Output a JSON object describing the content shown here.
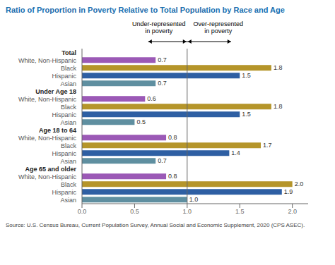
{
  "chart_data": {
    "type": "bar",
    "orientation": "horizontal",
    "title": "Ratio of Proportion in Poverty Relative to Total Population by Race and Age",
    "source": "Source: U.S. Census Bureau, Current Population Survey, Annual Social and Economic Supplement, 2020 (CPS ASEC).",
    "groups": [
      {
        "label": "Total",
        "categories": [
          "White, Non-Hispanic",
          "Black",
          "Hispanic",
          "Asian"
        ],
        "values": [
          0.7,
          1.8,
          1.5,
          0.7
        ],
        "value_labels": [
          "0.7",
          "1.8",
          "1.5",
          "0.7"
        ],
        "colors": [
          "#9b59b6",
          "#b5952a",
          "#2e5fa3",
          "#5f8fa0"
        ]
      },
      {
        "label": "Under Age 18",
        "categories": [
          "White, Non-Hispanic",
          "Black",
          "Hispanic",
          "Asian"
        ],
        "values": [
          0.6,
          1.8,
          1.5,
          0.5
        ],
        "value_labels": [
          "0.6",
          "1.8",
          "1.5",
          "0.5"
        ],
        "colors": [
          "#9b59b6",
          "#b5952a",
          "#2e5fa3",
          "#5f8fa0"
        ]
      },
      {
        "label": "Age 18 to 64",
        "categories": [
          "White, Non-Hispanic",
          "Black",
          "Hispanic",
          "Asian"
        ],
        "values": [
          0.8,
          1.7,
          1.4,
          0.7
        ],
        "value_labels": [
          "0.8",
          "1.7",
          "1.4",
          "0.7"
        ],
        "colors": [
          "#9b59b6",
          "#b5952a",
          "#2e5fa3",
          "#5f8fa0"
        ]
      },
      {
        "label": "Age 65 and older",
        "categories": [
          "White, Non-Hispanic",
          "Black",
          "Hispanic",
          "Asian"
        ],
        "values": [
          0.8,
          2.0,
          1.9,
          1.0
        ],
        "value_labels": [
          "0.8",
          "2.0",
          "1.9",
          "1.0"
        ],
        "colors": [
          "#9b59b6",
          "#b5952a",
          "#2e5fa3",
          "#5f8fa0"
        ]
      }
    ],
    "xlim": [
      0.0,
      2.15
    ],
    "xticks": [
      {
        "value": 0.0,
        "label": "0.0"
      },
      0.5,
      {
        "value": 1.0,
        "label": "1.0"
      },
      1.5,
      {
        "value": 2.0,
        "label": "2.0"
      }
    ],
    "reference_line_x": 1.0,
    "annotations": [
      "Under-represented\nin poverty",
      "Over-represented\nin poverty"
    ],
    "data_labels": true,
    "grid": false
  }
}
